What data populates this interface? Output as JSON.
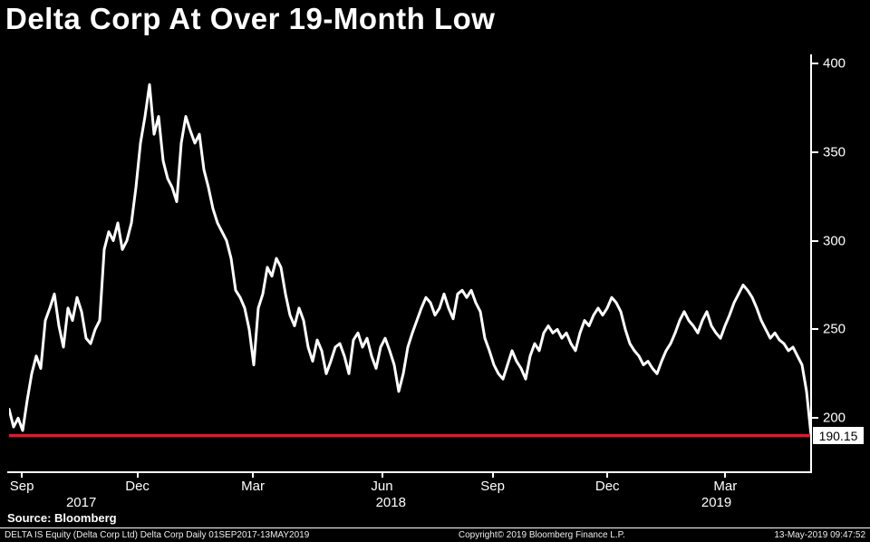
{
  "title": "Delta Corp At Over 19-Month Low",
  "source_line": "Source: Bloomberg",
  "footer": {
    "left": "DELTA IS Equity (Delta Corp Ltd) Delta Corp   Daily 01SEP2017-13MAY2019",
    "center": "Copyright© 2019 Bloomberg Finance L.P.",
    "right": "13-May-2019 09:47:52"
  },
  "colors": {
    "background": "#000000",
    "price_line": "#ffffff",
    "low_line": "#e0192e",
    "label_box_bg": "#ffffff",
    "label_box_text": "#000000"
  },
  "chart_data": {
    "type": "line",
    "title": "Delta Corp At Over 19-Month Low",
    "xlabel": "",
    "ylabel": "",
    "x_range_label": "01SEP2017-13MAY2019",
    "frequency": "Daily",
    "grid": false,
    "legend_position": "none",
    "ylim": [
      170,
      405
    ],
    "y_ticks": [
      400,
      350,
      300,
      250,
      200
    ],
    "x_ticks": [
      {
        "label": "Sep",
        "pos": 0.016
      },
      {
        "label": "Dec",
        "pos": 0.16
      },
      {
        "label": "Mar",
        "pos": 0.304
      },
      {
        "label": "Jun",
        "pos": 0.465
      },
      {
        "label": "Sep",
        "pos": 0.603
      },
      {
        "label": "Dec",
        "pos": 0.746
      },
      {
        "label": "Mar",
        "pos": 0.893
      }
    ],
    "year_labels": [
      {
        "label": "2017",
        "pos": 0.09
      },
      {
        "label": "2018",
        "pos": 0.476
      },
      {
        "label": "2019",
        "pos": 0.882
      }
    ],
    "last_price": 190.15,
    "last_price_label": "190.15",
    "series": [
      {
        "name": "DELTA IS Equity last price",
        "values": [
          205,
          195,
          200,
          193,
          210,
          225,
          235,
          228,
          255,
          262,
          270,
          252,
          240,
          262,
          255,
          268,
          260,
          245,
          242,
          250,
          255,
          295,
          305,
          300,
          310,
          295,
          300,
          310,
          330,
          355,
          370,
          388,
          360,
          370,
          345,
          335,
          330,
          322,
          355,
          370,
          362,
          355,
          360,
          340,
          330,
          318,
          310,
          305,
          300,
          290,
          272,
          268,
          262,
          250,
          230,
          262,
          270,
          285,
          280,
          290,
          285,
          270,
          258,
          252,
          262,
          255,
          240,
          232,
          244,
          238,
          225,
          232,
          240,
          242,
          235,
          225,
          244,
          248,
          240,
          245,
          235,
          228,
          240,
          245,
          238,
          230,
          215,
          225,
          240,
          248,
          255,
          262,
          268,
          265,
          258,
          262,
          270,
          262,
          256,
          270,
          272,
          268,
          272,
          265,
          260,
          245,
          238,
          230,
          225,
          222,
          230,
          238,
          232,
          228,
          222,
          235,
          242,
          238,
          248,
          252,
          248,
          250,
          245,
          248,
          242,
          238,
          248,
          255,
          252,
          258,
          262,
          258,
          262,
          268,
          265,
          260,
          250,
          242,
          238,
          235,
          230,
          232,
          228,
          225,
          232,
          238,
          242,
          248,
          255,
          260,
          255,
          252,
          248,
          255,
          260,
          252,
          248,
          245,
          252,
          258,
          265,
          270,
          275,
          272,
          268,
          262,
          255,
          250,
          245,
          248,
          244,
          242,
          238,
          240,
          235,
          230,
          215,
          190.15
        ]
      }
    ]
  }
}
